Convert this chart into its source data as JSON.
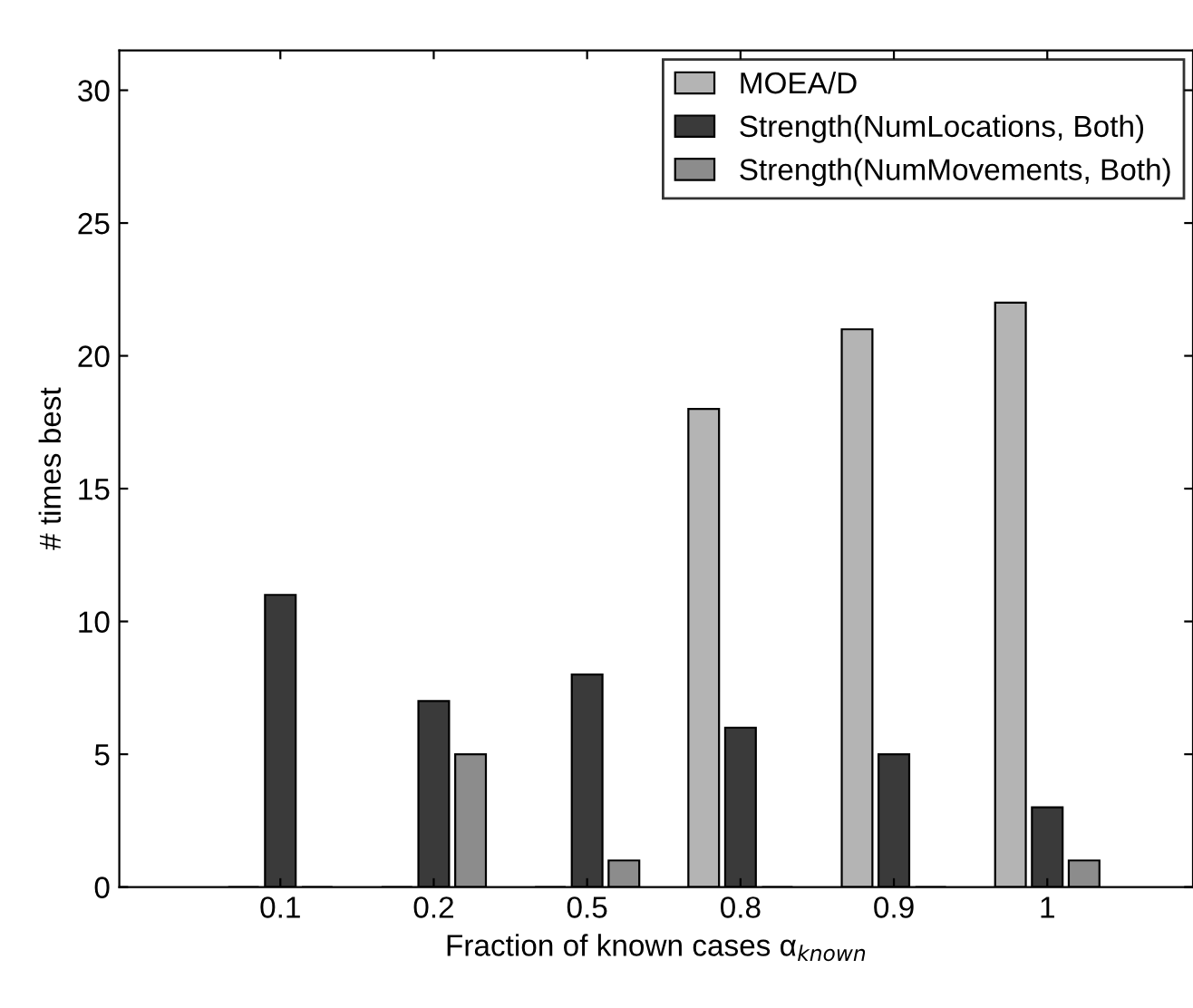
{
  "chart_data": {
    "type": "bar",
    "xlabel": "Fraction of known cases α$_{known}$",
    "ylabel": "# times best",
    "categories": [
      "0.1",
      "0.2",
      "0.5",
      "0.8",
      "0.9",
      "1"
    ],
    "series": [
      {
        "name": "MOEA/D",
        "color": "#b4b4b4",
        "values": [
          0,
          0,
          0,
          18,
          21,
          22
        ]
      },
      {
        "name": "Strength(NumLocations, Both)",
        "color": "#3a3a3a",
        "values": [
          11,
          7,
          8,
          6,
          5,
          3
        ]
      },
      {
        "name": "Strength(NumMovements, Both)",
        "color": "#8c8c8c",
        "values": [
          0,
          5,
          1,
          0,
          0,
          1
        ]
      }
    ],
    "ylim": [
      0,
      31.5
    ],
    "yticks": [
      0,
      5,
      10,
      15,
      20,
      25,
      30
    ],
    "grid": false,
    "legend": "top right"
  }
}
